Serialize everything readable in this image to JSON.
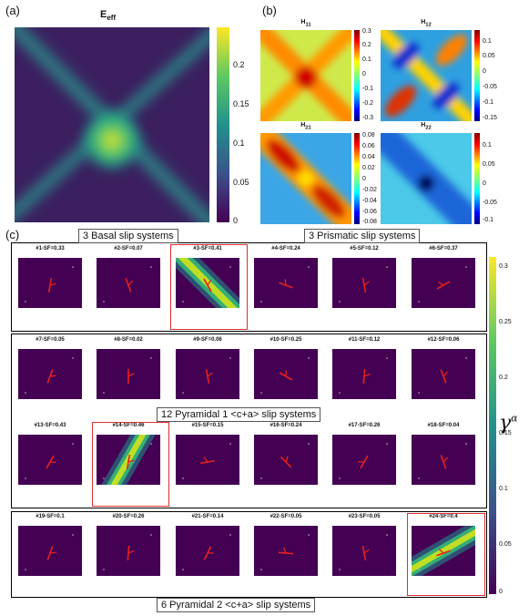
{
  "panels": {
    "a": {
      "letter": "(a)",
      "title": "E",
      "title_sub": "eff",
      "colorbar_ticks": [
        "0.2",
        "0.15",
        "0.1",
        "0.05",
        "0"
      ]
    },
    "b": {
      "letter": "(b)",
      "subplots": [
        {
          "title": "H",
          "sub": "11",
          "ticks": [
            "0.3",
            "0.2",
            "0.1",
            "0",
            "-0.1",
            "-0.2",
            "-0.3"
          ]
        },
        {
          "title": "H",
          "sub": "12",
          "ticks": [
            "0.1",
            "0.05",
            "0",
            "-0.05",
            "-0.1",
            "-0.15"
          ]
        },
        {
          "title": "H",
          "sub": "21",
          "ticks": [
            "0.08",
            "0.06",
            "0.04",
            "0.02",
            "0",
            "-0.02",
            "-0.04",
            "-0.06",
            "-0.08"
          ]
        },
        {
          "title": "H",
          "sub": "22",
          "ticks": [
            "0.1",
            "0.05",
            "0",
            "-0.05",
            "-0.1"
          ]
        }
      ]
    },
    "c": {
      "letter": "(c)",
      "colorbar_ticks": [
        "0.3",
        "0.25",
        "0.2",
        "0.15",
        "0.1",
        "0.05",
        "0"
      ],
      "colorbar_label": "γ",
      "colorbar_label_sup": "α"
    }
  },
  "groups": {
    "basal": "3 Basal slip systems",
    "prismatic": "3 Prismatic slip systems",
    "pyramidal1": "12 Pyramidal 1 <c+a> slip systems",
    "pyramidal2": "6 Pyramidal 2 <c+a> slip systems"
  },
  "tiles": [
    "#1-SF=0.33",
    "#2-SF=0.07",
    "#3-SF=0.41",
    "#4-SF=0.24",
    "#5-SF=0.12",
    "#6-SF=0.37",
    "#7-SF=0.05",
    "#8-SF=0.02",
    "#9-SF=0.06",
    "#10-SF=0.25",
    "#11-SF=0.12",
    "#12-SF=0.06",
    "#13-SF=0.43",
    "#14-SF=0.46",
    "#15-SF=0.15",
    "#16-SF=0.24",
    "#17-SF=0.26",
    "#18-SF=0.04",
    "#19-SF=0.1",
    "#20-SF=0.26",
    "#21-SF=0.14",
    "#22-SF=0.05",
    "#23-SF=0.05",
    "#24-SF=0.4"
  ],
  "colors": {
    "viridis_dark": "#440154",
    "highlight": "#e03030",
    "glyph": "#e8201c"
  }
}
